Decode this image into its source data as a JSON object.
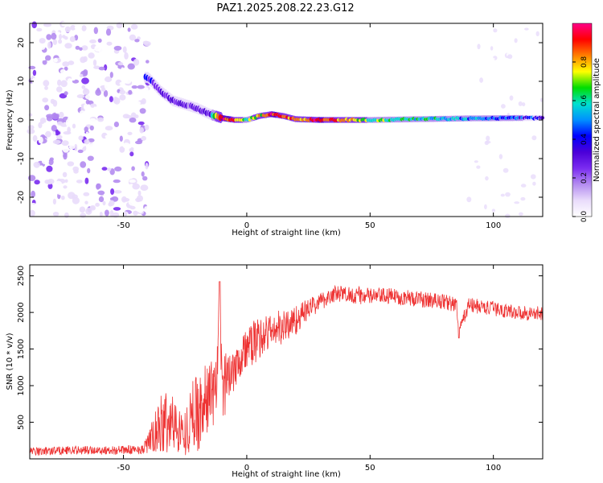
{
  "figure": {
    "title": "PAZ1.2025.208.22.23.G12"
  },
  "colors": {
    "snr_line": "#ee3333",
    "axis": "#000000",
    "colormap": [
      "#ffffff",
      "#e9dcfb",
      "#b48cf0",
      "#7a2cf0",
      "#4b00d8",
      "#0000ff",
      "#0090ff",
      "#00e0d0",
      "#00dd00",
      "#ffff00",
      "#ff8000",
      "#ff0000",
      "#ff0088"
    ]
  },
  "chart_data": [
    {
      "type": "heatmap",
      "title": "",
      "xlabel": "Height of straight line (km)",
      "ylabel": "Frequency (Hz)",
      "xlim": [
        -88,
        120
      ],
      "ylim": [
        -25,
        25
      ],
      "xticks": [
        "-50",
        "0",
        "50",
        "100"
      ],
      "yticks": [
        "20",
        "10",
        "0",
        "-10",
        "-20"
      ],
      "colorbar": {
        "label": "Normalized spectral amplitude",
        "range": [
          0,
          1
        ],
        "ticks": [
          "0.0",
          "0.2",
          "0.4",
          "0.6",
          "0.8"
        ]
      },
      "ridge": {
        "x": [
          -40,
          -35,
          -30,
          -25,
          -20,
          -15,
          -10,
          -5,
          0,
          5,
          10,
          15,
          20,
          30,
          50,
          70,
          90,
          110,
          120
        ],
        "freq": [
          11,
          7.5,
          5,
          4,
          3,
          1.5,
          0.5,
          0,
          0,
          1,
          1.5,
          1,
          0.2,
          0,
          0,
          0.2,
          0.4,
          0.5,
          0.5
        ],
        "amplitude": [
          0.35,
          0.3,
          0.32,
          0.28,
          0.3,
          0.35,
          0.95,
          0.85,
          0.6,
          0.7,
          0.9,
          0.85,
          0.75,
          0.9,
          0.65,
          0.6,
          0.5,
          0.45,
          0.4
        ]
      },
      "noise_region": {
        "x": [
          -88,
          -40
        ],
        "amplitude": [
          0.05,
          0.25
        ]
      }
    },
    {
      "type": "line",
      "title": "",
      "xlabel": "Height of straight line (km)",
      "ylabel": "SNR (10 * v/v)",
      "xlim": [
        -88,
        120
      ],
      "ylim": [
        0,
        2650
      ],
      "xticks": [
        "-50",
        "0",
        "50",
        "100"
      ],
      "yticks": [
        "500",
        "1000",
        "1500",
        "2000",
        "2500"
      ],
      "series": [
        {
          "x": [
            -88,
            -80,
            -70,
            -60,
            -50,
            -42,
            -38,
            -35,
            -33,
            -30,
            -27,
            -25,
            -22,
            -20,
            -18,
            -15,
            -12,
            -11,
            -10,
            -8,
            -5,
            0,
            5,
            10,
            15,
            20,
            25,
            30,
            35,
            40,
            50,
            60,
            70,
            80,
            85,
            86,
            90,
            100,
            110,
            120
          ],
          "y": [
            100,
            110,
            120,
            115,
            120,
            130,
            300,
            450,
            500,
            480,
            400,
            350,
            600,
            650,
            700,
            900,
            1000,
            2300,
            900,
            1100,
            1300,
            1500,
            1650,
            1750,
            1800,
            1900,
            2050,
            2150,
            2250,
            2250,
            2220,
            2220,
            2180,
            2150,
            2100,
            1750,
            2100,
            2050,
            2000,
            1980
          ],
          "noise": [
            60,
            60,
            60,
            60,
            60,
            60,
            250,
            400,
            500,
            400,
            300,
            300,
            500,
            550,
            500,
            500,
            500,
            200,
            500,
            400,
            350,
            300,
            300,
            250,
            250,
            200,
            150,
            120,
            120,
            120,
            120,
            110,
            110,
            110,
            110,
            60,
            110,
            100,
            100,
            100
          ]
        }
      ]
    }
  ]
}
